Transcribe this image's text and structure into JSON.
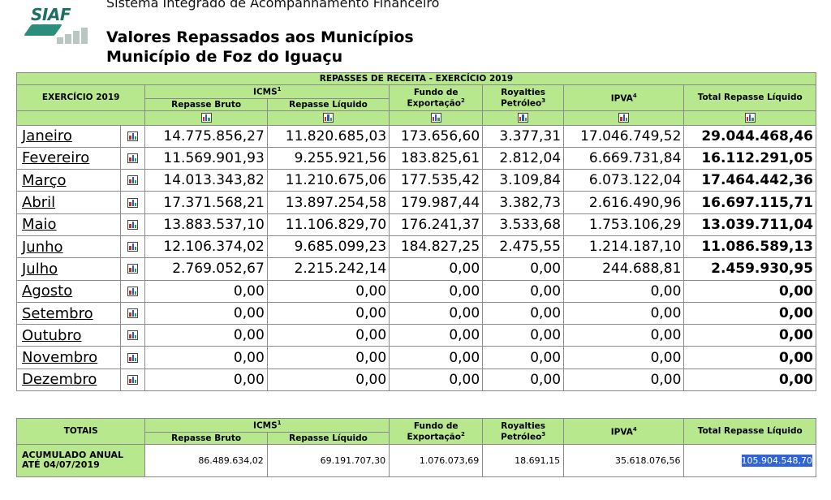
{
  "header": {
    "logo_text": "SIAF",
    "system_title": "Sistema Integrado de Acompanhamento Financeiro",
    "title_line1": "Valores Repassados aos Municípios",
    "title_line2": "Município de Foz do Iguaçu"
  },
  "table": {
    "caption": "REPASSES DE RECEITA - EXERCÍCIO 2019",
    "col_exercicio": "EXERCÍCIO 2019",
    "col_icms": "ICMS",
    "icms_sup": "1",
    "col_repasse_bruto": "Repasse Bruto",
    "col_repasse_liquido": "Repasse Líquido",
    "col_fundo_line1": "Fundo de",
    "col_fundo_line2": "Exportação",
    "fundo_sup": "2",
    "col_royalties_line1": "Royalties",
    "col_royalties_line2": "Petróleo",
    "royalties_sup": "3",
    "col_ipva": "IPVA",
    "ipva_sup": "4",
    "col_total": "Total Repasse Líquido",
    "rows": [
      {
        "month": "Janeiro",
        "bruto": "14.775.856,27",
        "liquido": "11.820.685,03",
        "fundo": "173.656,60",
        "royalties": "3.377,31",
        "ipva": "17.046.749,52",
        "total": "29.044.468,46"
      },
      {
        "month": "Fevereiro",
        "bruto": "11.569.901,93",
        "liquido": "9.255.921,56",
        "fundo": "183.825,61",
        "royalties": "2.812,04",
        "ipva": "6.669.731,84",
        "total": "16.112.291,05"
      },
      {
        "month": "Março",
        "bruto": "14.013.343,82",
        "liquido": "11.210.675,06",
        "fundo": "177.535,42",
        "royalties": "3.109,84",
        "ipva": "6.073.122,04",
        "total": "17.464.442,36"
      },
      {
        "month": "Abril",
        "bruto": "17.371.568,21",
        "liquido": "13.897.254,58",
        "fundo": "179.987,44",
        "royalties": "3.382,73",
        "ipva": "2.616.490,96",
        "total": "16.697.115,71"
      },
      {
        "month": "Maio",
        "bruto": "13.883.537,10",
        "liquido": "11.106.829,70",
        "fundo": "176.241,37",
        "royalties": "3.533,68",
        "ipva": "1.753.106,29",
        "total": "13.039.711,04"
      },
      {
        "month": "Junho",
        "bruto": "12.106.374,02",
        "liquido": "9.685.099,23",
        "fundo": "184.827,25",
        "royalties": "2.475,55",
        "ipva": "1.214.187,10",
        "total": "11.086.589,13"
      },
      {
        "month": "Julho",
        "bruto": "2.769.052,67",
        "liquido": "2.215.242,14",
        "fundo": "0,00",
        "royalties": "0,00",
        "ipva": "244.688,81",
        "total": "2.459.930,95"
      },
      {
        "month": "Agosto",
        "bruto": "0,00",
        "liquido": "0,00",
        "fundo": "0,00",
        "royalties": "0,00",
        "ipva": "0,00",
        "total": "0,00"
      },
      {
        "month": "Setembro",
        "bruto": "0,00",
        "liquido": "0,00",
        "fundo": "0,00",
        "royalties": "0,00",
        "ipva": "0,00",
        "total": "0,00"
      },
      {
        "month": "Outubro",
        "bruto": "0,00",
        "liquido": "0,00",
        "fundo": "0,00",
        "royalties": "0,00",
        "ipva": "0,00",
        "total": "0,00"
      },
      {
        "month": "Novembro",
        "bruto": "0,00",
        "liquido": "0,00",
        "fundo": "0,00",
        "royalties": "0,00",
        "ipva": "0,00",
        "total": "0,00"
      },
      {
        "month": "Dezembro",
        "bruto": "0,00",
        "liquido": "0,00",
        "fundo": "0,00",
        "royalties": "0,00",
        "ipva": "0,00",
        "total": "0,00"
      }
    ]
  },
  "totals": {
    "label": "TOTAIS",
    "acum_line1": "ACUMULADO ANUAL",
    "acum_line2": "ATÉ 04/07/2019",
    "bruto": "86.489.634,02",
    "liquido": "69.191.707,30",
    "fundo": "1.076.073,69",
    "royalties": "18.691,15",
    "ipva": "35.618.076,56",
    "total": "105.904.548,70"
  },
  "icons": [
    "chart-icon"
  ],
  "colors": {
    "header_green": "#b7e88d",
    "logo_teal": "#1f6f62",
    "selection_blue": "#2e64d8"
  }
}
